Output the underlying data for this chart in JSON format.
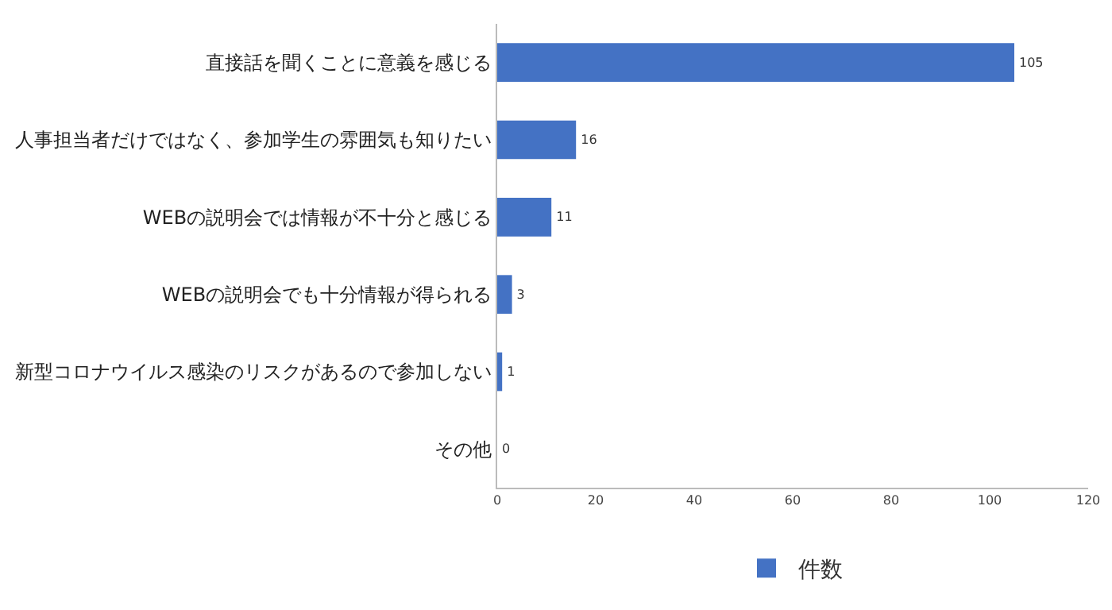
{
  "chart_data": {
    "type": "bar",
    "orientation": "horizontal",
    "categories": [
      "直接話を聞くことに意義を感じる",
      "人事担当者だけではなく、参加学生の雰囲気も知りたい",
      "WEBの説明会では情報が不十分と感じる",
      "WEBの説明会でも十分情報が得られる",
      "新型コロナウイルス感染のリスクがあるので参加しない",
      "その他"
    ],
    "series": [
      {
        "name": "件数",
        "color": "#4472c4",
        "values": [
          105,
          16,
          11,
          3,
          1,
          0
        ]
      }
    ],
    "xlim": [
      0,
      120
    ],
    "xticks": [
      0,
      20,
      40,
      60,
      80,
      100,
      120
    ],
    "data_labels": true,
    "grid": false,
    "legend": "bottom"
  }
}
